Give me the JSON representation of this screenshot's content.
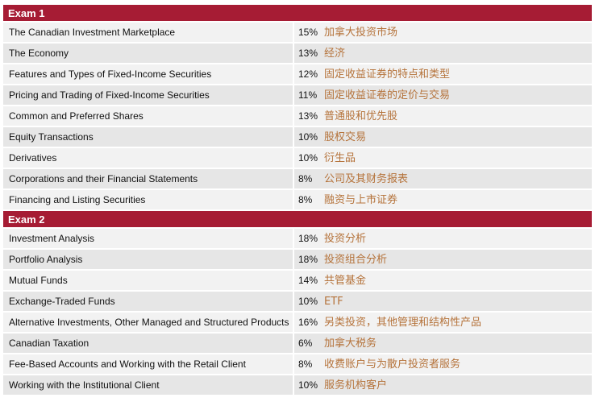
{
  "exam1": {
    "title": "Exam 1",
    "rows": [
      {
        "topic": "The Canadian Investment Marketplace",
        "pct": "15%",
        "zh": "加拿大投资市场"
      },
      {
        "topic": "The Economy",
        "pct": "13%",
        "zh": "经济"
      },
      {
        "topic": "Features and Types of Fixed-Income Securities",
        "pct": "12%",
        "zh": "固定收益证券的特点和类型"
      },
      {
        "topic": "Pricing and Trading of Fixed-Income Securities",
        "pct": "11%",
        "zh": "固定收益证卷的定价与交易"
      },
      {
        "topic": "Common and Preferred Shares",
        "pct": "13%",
        "zh": "普通股和优先股"
      },
      {
        "topic": "Equity Transactions",
        "pct": "10%",
        "zh": "股权交易"
      },
      {
        "topic": "Derivatives",
        "pct": "10%",
        "zh": "衍生品"
      },
      {
        "topic": "Corporations and their Financial Statements",
        "pct": "8%",
        "zh": "公司及其财务报表"
      },
      {
        "topic": "Financing and Listing Securities",
        "pct": "8%",
        "zh": "融资与上市证券"
      }
    ]
  },
  "exam2": {
    "title": "Exam 2",
    "rows": [
      {
        "topic": "Investment Analysis",
        "pct": "18%",
        "zh": "投资分析"
      },
      {
        "topic": "Portfolio Analysis",
        "pct": "18%",
        "zh": "投资组合分析"
      },
      {
        "topic": "Mutual Funds",
        "pct": "14%",
        "zh": "共管基金"
      },
      {
        "topic": "Exchange-Traded Funds",
        "pct": "10%",
        "zh": "ETF"
      },
      {
        "topic": "Alternative Investments, Other Managed and Structured Products",
        "pct": "16%",
        "zh": "另类投资，其他管理和结构性产品"
      },
      {
        "topic": "Canadian Taxation",
        "pct": "6%",
        "zh": "加拿大税务"
      },
      {
        "topic": "Fee-Based Accounts and Working with the Retail Client",
        "pct": "8%",
        "zh": "收费账户与为散户投资者服务"
      },
      {
        "topic": "Working with the Institutional Client",
        "pct": "10%",
        "zh": "服务机构客户"
      }
    ]
  },
  "colors": {
    "header_bg": "#a61c34",
    "chinese_text": "#b5733b"
  }
}
